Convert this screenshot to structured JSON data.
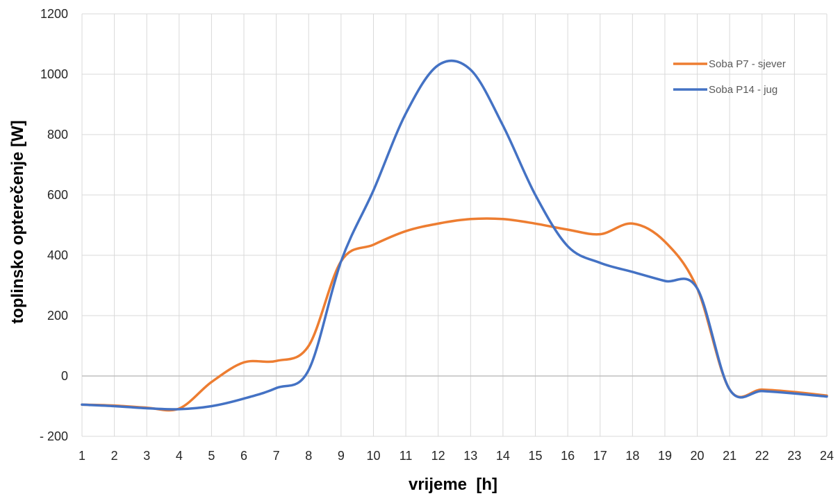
{
  "chart_data": {
    "type": "line",
    "title": "",
    "xlabel": "vrijeme  [h]",
    "ylabel": "toplinsko opterečenje [W]",
    "xlim": [
      1,
      24
    ],
    "ylim": [
      -200,
      1200
    ],
    "x_ticks": [
      "1",
      "2",
      "3",
      "4",
      "5",
      "6",
      "7",
      "8",
      "9",
      "10",
      "11",
      "12",
      "13",
      "14",
      "15",
      "16",
      "17",
      "18",
      "19",
      "20",
      "21",
      "22",
      "23",
      "24"
    ],
    "y_ticks": [
      {
        "value": -200,
        "label": "- 200"
      },
      {
        "value": 0,
        "label": "0"
      },
      {
        "value": 200,
        "label": "200"
      },
      {
        "value": 400,
        "label": "400"
      },
      {
        "value": 600,
        "label": "600"
      },
      {
        "value": 800,
        "label": "800"
      },
      {
        "value": 1000,
        "label": "1000"
      },
      {
        "value": 1200,
        "label": "1200"
      }
    ],
    "grid": "vertical and horizontal",
    "legend_position": "top-right",
    "x": [
      1,
      2,
      3,
      4,
      5,
      6,
      7,
      8,
      9,
      10,
      11,
      12,
      13,
      14,
      15,
      16,
      17,
      18,
      19,
      20,
      21,
      22,
      23,
      24
    ],
    "series": [
      {
        "name": "Soba P7 - sjever",
        "color": "#ED7D31",
        "values": [
          -95,
          -98,
          -105,
          -108,
          -20,
          45,
          50,
          100,
          380,
          435,
          480,
          505,
          520,
          520,
          505,
          485,
          470,
          505,
          445,
          290,
          -45,
          -45,
          -53,
          -65
        ]
      },
      {
        "name": "Soba P14 - jug",
        "color": "#4472C4",
        "values": [
          -95,
          -100,
          -107,
          -110,
          -100,
          -75,
          -40,
          20,
          380,
          615,
          870,
          1030,
          1015,
          830,
          600,
          430,
          375,
          345,
          315,
          290,
          -45,
          -50,
          -58,
          -68
        ]
      }
    ]
  }
}
